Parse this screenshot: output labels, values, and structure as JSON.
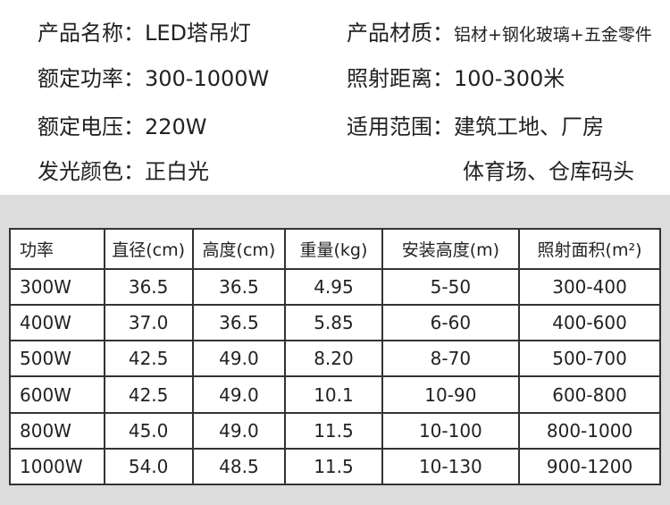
{
  "specs": [
    {
      "left": {
        "label": "产品名称：",
        "value": "LED塔吊灯"
      },
      "right": {
        "label": "产品材质：",
        "value": "铝材+钢化玻璃+五金零件"
      }
    },
    {
      "left": {
        "label": "额定功率：",
        "value": "300-1000W"
      },
      "right": {
        "label": "照射距离：",
        "value": "100-300米"
      }
    },
    {
      "left": {
        "label": "额定电压：",
        "value": "220W"
      },
      "right": {
        "label": "适用范围：",
        "value": "建筑工地、厂房"
      }
    },
    {
      "left": {
        "label": "发光颜色：",
        "value": "正白光"
      },
      "right": {
        "value": "体育场、仓库码头"
      }
    }
  ],
  "table": {
    "header": [
      "功率",
      "直径(cm)",
      "高度(cm)",
      "重量(kg)",
      "安装高度(m)",
      "照射面积(m²)"
    ],
    "rows": [
      [
        "300W",
        "36.5",
        "36.5",
        "4.95",
        "5-50",
        "300-400"
      ],
      [
        "400W",
        "37.0",
        "36.5",
        "5.85",
        "6-60",
        "400-600"
      ],
      [
        "500W",
        "42.5",
        "49.0",
        "8.20",
        "8-70",
        "500-700"
      ],
      [
        "600W",
        "42.5",
        "49.0",
        "10.1",
        "10-90",
        "600-800"
      ],
      [
        "800W",
        "45.0",
        "49.0",
        "11.5",
        "10-100",
        "800-1000"
      ],
      [
        "1000W",
        "54.0",
        "48.5",
        "11.5",
        "10-130",
        "900-1200"
      ]
    ]
  }
}
